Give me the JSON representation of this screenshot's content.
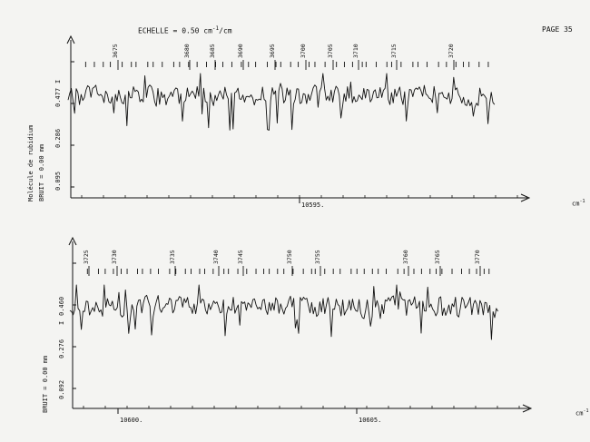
{
  "header": {
    "scale_label": "ECHELLE =",
    "scale_value": "0.50 cm",
    "scale_exp": "-1",
    "scale_unit": "/cm",
    "page_label": "PAGE 35"
  },
  "molecule_label": "Molécule de rubidium",
  "chart_data": [
    {
      "type": "line",
      "noise_label": "BRUIT =",
      "noise_value": "0.00 mm",
      "unit_label": "cm",
      "unit_exp": "-1",
      "x_tick_labels": [
        "10595."
      ],
      "y_tick_labels": [
        "0.477",
        "0.286",
        "0.095"
      ],
      "y_marker": "I",
      "line_labels": [
        "3675",
        "3680",
        "3685",
        "3690",
        "3695",
        "3700",
        "3705",
        "3710",
        "3715",
        "3720"
      ],
      "line_count": 48
    },
    {
      "type": "line",
      "noise_label": "BRUIT =",
      "noise_value": "0.00 mm",
      "unit_label": "cm",
      "unit_exp": "-1",
      "x_tick_labels": [
        "10600.",
        "10605."
      ],
      "y_tick_labels": [
        "0.460",
        "0.276",
        "0.092"
      ],
      "y_marker": "I",
      "line_labels": [
        "3725",
        "3730",
        "3735",
        "3740",
        "3745",
        "3750",
        "3755",
        "3760",
        "3765",
        "3770"
      ],
      "line_count": 52
    }
  ]
}
